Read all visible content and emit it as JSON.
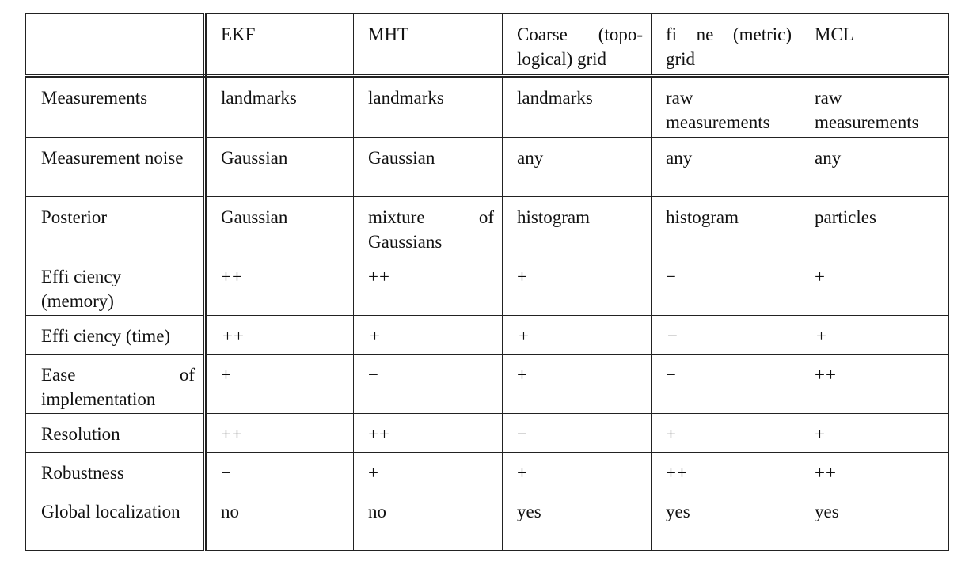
{
  "table": {
    "columns": [
      "",
      "EKF",
      "MHT",
      "Coarse (topo-logical) grid",
      "fi ne (metric) grid",
      "MCL"
    ],
    "rows": [
      {
        "label": "Measurements",
        "cells": [
          "landmarks",
          "landmarks",
          "landmarks",
          "raw measurements",
          "raw measurements"
        ]
      },
      {
        "label": "Measurement noise",
        "cells": [
          "Gaussian",
          "Gaussian",
          "any",
          "any",
          "any"
        ]
      },
      {
        "label": "Posterior",
        "cells": [
          "Gaussian",
          "mixture of Gaussians",
          "histogram",
          "histogram",
          "particles"
        ]
      },
      {
        "label": "Effi ciency (memory)",
        "cells": [
          "++",
          "++",
          "+",
          "−",
          "+"
        ]
      },
      {
        "label": "Effi ciency (time)",
        "cells": [
          "++",
          "+",
          "+",
          "−",
          "+"
        ]
      },
      {
        "label": "Ease of implementation",
        "cells": [
          "+",
          "−",
          "+",
          "−",
          "++"
        ]
      },
      {
        "label": "Resolution",
        "cells": [
          "++",
          "++",
          "−",
          "+",
          "+"
        ]
      },
      {
        "label": "Robustness",
        "cells": [
          "−",
          "+",
          "+",
          "++",
          "++"
        ]
      },
      {
        "label": "Global localization",
        "cells": [
          "no",
          "no",
          "yes",
          "yes",
          "yes"
        ]
      }
    ]
  }
}
